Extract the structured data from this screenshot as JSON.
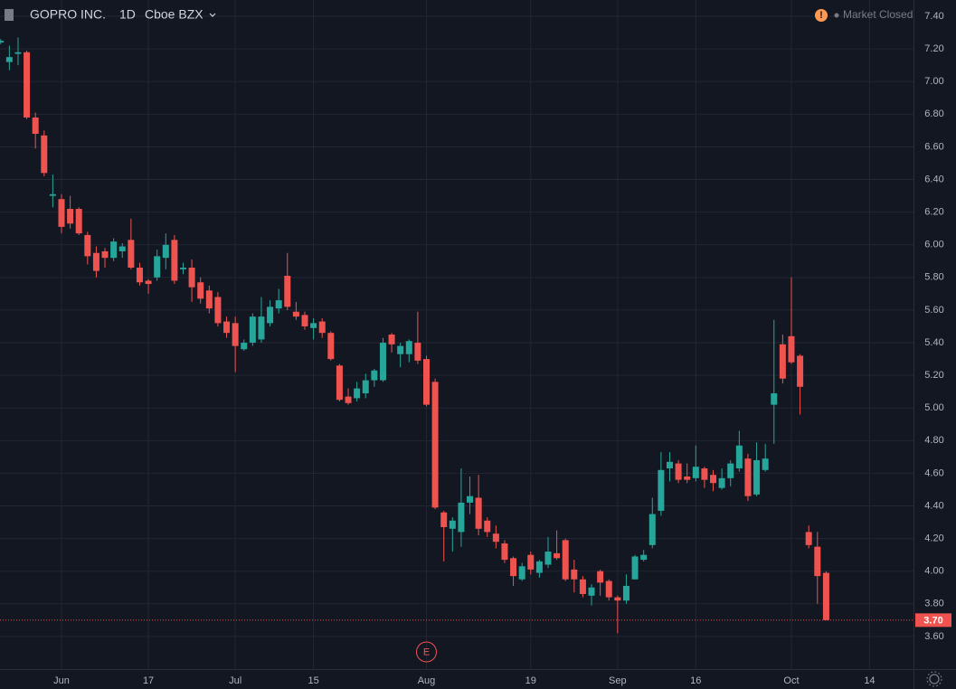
{
  "chart_data": {
    "type": "candlestick",
    "title": "GOPRO INC.",
    "interval": "1D",
    "exchange": "Cboe BZX",
    "status": "Market Closed",
    "earnings_marker": "E",
    "up_color": "#26a69a",
    "down_color": "#ef5350",
    "grid": true,
    "categories": [
      null,
      null,
      null,
      null,
      null,
      null,
      null,
      "Jun",
      null,
      null,
      null,
      null,
      null,
      null,
      null,
      null,
      null,
      "17",
      null,
      null,
      null,
      null,
      null,
      null,
      null,
      null,
      null,
      "Jul",
      null,
      null,
      null,
      null,
      null,
      null,
      null,
      null,
      "15",
      null,
      null,
      null,
      null,
      null,
      null,
      null,
      null,
      null,
      null,
      null,
      null,
      "Aug",
      null,
      null,
      null,
      null,
      null,
      null,
      null,
      null,
      null,
      null,
      null,
      "19",
      null,
      null,
      null,
      null,
      null,
      null,
      null,
      null,
      null,
      "Sep",
      null,
      null,
      null,
      null,
      null,
      null,
      null,
      null,
      "16",
      null,
      null,
      null,
      null,
      null,
      null,
      null,
      null,
      null,
      null,
      "Oct",
      null,
      null,
      null,
      null,
      null,
      null,
      null,
      null,
      "14",
      null,
      null,
      null,
      null,
      null
    ],
    "open": [
      7.24,
      7.12,
      7.17,
      7.18,
      6.78,
      6.67,
      6.3,
      6.28,
      6.22,
      6.22,
      6.06,
      5.95,
      5.96,
      5.92,
      5.96,
      6.03,
      5.86,
      5.78,
      5.8,
      5.92,
      6.03,
      5.85,
      5.86,
      5.77,
      5.72,
      5.68,
      5.53,
      5.52,
      5.36,
      5.4,
      5.42,
      5.52,
      5.61,
      5.81,
      5.59,
      5.57,
      5.49,
      5.53,
      5.46,
      5.26,
      5.07,
      5.06,
      5.09,
      5.17,
      5.17,
      5.45,
      5.33,
      5.33,
      5.4,
      5.3,
      5.16,
      4.36,
      4.26,
      4.24,
      4.42,
      4.45,
      4.31,
      4.23,
      4.17,
      4.08,
      3.95,
      4.1,
      3.99,
      4.04,
      4.11,
      4.19,
      4.01,
      3.95,
      3.85,
      4.0,
      3.94,
      3.84,
      3.82,
      3.95,
      4.07,
      4.16,
      4.37,
      4.63,
      4.66,
      4.58,
      4.57,
      4.63,
      4.59,
      4.51,
      4.57,
      4.63,
      4.69,
      4.47,
      4.62,
      5.02,
      5.39,
      5.44,
      5.32,
      4.24,
      4.15,
      3.99,
      null,
      null,
      null,
      null,
      null,
      null,
      null,
      null,
      null,
      null
    ],
    "high": [
      7.26,
      7.22,
      7.27,
      7.19,
      6.81,
      6.7,
      6.43,
      6.31,
      6.3,
      6.23,
      6.08,
      5.99,
      5.98,
      6.04,
      6.01,
      6.16,
      5.89,
      5.79,
      5.97,
      6.07,
      6.06,
      5.89,
      5.91,
      5.8,
      5.75,
      5.71,
      5.56,
      5.56,
      5.42,
      5.58,
      5.68,
      5.66,
      5.73,
      5.95,
      5.65,
      5.59,
      5.55,
      5.55,
      5.47,
      5.27,
      5.12,
      5.16,
      5.21,
      5.24,
      5.43,
      5.46,
      5.4,
      5.42,
      5.59,
      5.32,
      5.18,
      4.37,
      4.33,
      4.63,
      4.58,
      4.59,
      4.33,
      4.28,
      4.19,
      4.09,
      4.05,
      4.12,
      4.07,
      4.21,
      4.25,
      4.2,
      4.07,
      3.97,
      3.92,
      4.01,
      3.95,
      3.85,
      3.98,
      4.1,
      4.13,
      4.45,
      4.73,
      4.73,
      4.68,
      4.66,
      4.77,
      4.64,
      4.62,
      4.63,
      4.68,
      4.86,
      4.72,
      4.79,
      4.78,
      5.54,
      5.45,
      5.8,
      5.33,
      4.28,
      4.24,
      4.0,
      null,
      null,
      null,
      null,
      null,
      null,
      null,
      null,
      null,
      null
    ],
    "low": [
      7.23,
      7.07,
      7.1,
      6.77,
      6.59,
      6.42,
      6.23,
      6.07,
      6.1,
      6.06,
      5.88,
      5.8,
      5.86,
      5.9,
      5.92,
      5.85,
      5.75,
      5.7,
      5.78,
      5.85,
      5.76,
      5.82,
      5.65,
      5.64,
      5.58,
      5.5,
      5.43,
      5.22,
      5.35,
      5.38,
      5.4,
      5.5,
      5.58,
      5.6,
      5.54,
      5.48,
      5.42,
      5.43,
      5.29,
      5.04,
      5.02,
      5.04,
      5.06,
      5.13,
      5.16,
      5.34,
      5.25,
      5.28,
      5.27,
      5.01,
      4.38,
      4.06,
      4.12,
      4.15,
      4.35,
      4.22,
      4.21,
      4.14,
      4.05,
      3.91,
      3.94,
      3.98,
      3.96,
      4.02,
      4.07,
      3.94,
      3.87,
      3.84,
      3.79,
      3.85,
      3.82,
      3.62,
      3.8,
      3.95,
      4.06,
      4.14,
      4.34,
      4.55,
      4.54,
      4.54,
      4.55,
      4.51,
      4.49,
      4.5,
      4.52,
      4.61,
      4.43,
      4.46,
      4.61,
      4.78,
      5.15,
      5.27,
      4.96,
      4.14,
      3.8,
      3.7,
      null,
      null,
      null,
      null,
      null,
      null,
      null,
      null,
      null,
      null
    ],
    "close": [
      7.25,
      7.15,
      7.18,
      6.78,
      6.68,
      6.44,
      6.31,
      6.11,
      6.13,
      6.07,
      5.93,
      5.84,
      5.92,
      6.02,
      5.99,
      5.86,
      5.77,
      5.76,
      5.93,
      6.0,
      5.78,
      5.86,
      5.74,
      5.67,
      5.61,
      5.52,
      5.46,
      5.38,
      5.4,
      5.56,
      5.56,
      5.62,
      5.66,
      5.62,
      5.56,
      5.5,
      5.52,
      5.46,
      5.3,
      5.05,
      5.03,
      5.12,
      5.17,
      5.23,
      5.4,
      5.39,
      5.38,
      5.41,
      5.29,
      5.02,
      4.39,
      4.27,
      4.31,
      4.42,
      4.46,
      4.26,
      4.24,
      4.18,
      4.07,
      3.97,
      4.03,
      4.01,
      4.06,
      4.12,
      4.08,
      3.95,
      3.95,
      3.86,
      3.9,
      3.93,
      3.84,
      3.82,
      3.91,
      4.09,
      4.1,
      4.35,
      4.62,
      4.67,
      4.56,
      4.56,
      4.64,
      4.56,
      4.54,
      4.57,
      4.66,
      4.77,
      4.46,
      4.68,
      4.69,
      5.09,
      5.18,
      5.28,
      5.13,
      4.16,
      3.97,
      3.7,
      null,
      null,
      null,
      null,
      null,
      null,
      null,
      null,
      null,
      null
    ],
    "last_price": {
      "value": 3.7,
      "label": "3.70"
    },
    "ylim": [
      3.4,
      7.5
    ],
    "yticks": [
      {
        "value": 3.6,
        "label": "3.60"
      },
      {
        "value": 3.8,
        "label": "3.80"
      },
      {
        "value": 4.0,
        "label": "4.00"
      },
      {
        "value": 4.2,
        "label": "4.20"
      },
      {
        "value": 4.4,
        "label": "4.40"
      },
      {
        "value": 4.6,
        "label": "4.60"
      },
      {
        "value": 4.8,
        "label": "4.80"
      },
      {
        "value": 5.0,
        "label": "5.00"
      },
      {
        "value": 5.2,
        "label": "5.20"
      },
      {
        "value": 5.4,
        "label": "5.40"
      },
      {
        "value": 5.6,
        "label": "5.60"
      },
      {
        "value": 5.8,
        "label": "5.80"
      },
      {
        "value": 6.0,
        "label": "6.00"
      },
      {
        "value": 6.2,
        "label": "6.20"
      },
      {
        "value": 6.4,
        "label": "6.40"
      },
      {
        "value": 6.6,
        "label": "6.60"
      },
      {
        "value": 6.8,
        "label": "6.80"
      },
      {
        "value": 7.0,
        "label": "7.00"
      },
      {
        "value": 7.2,
        "label": "7.20"
      },
      {
        "value": 7.4,
        "label": "7.40"
      }
    ]
  }
}
